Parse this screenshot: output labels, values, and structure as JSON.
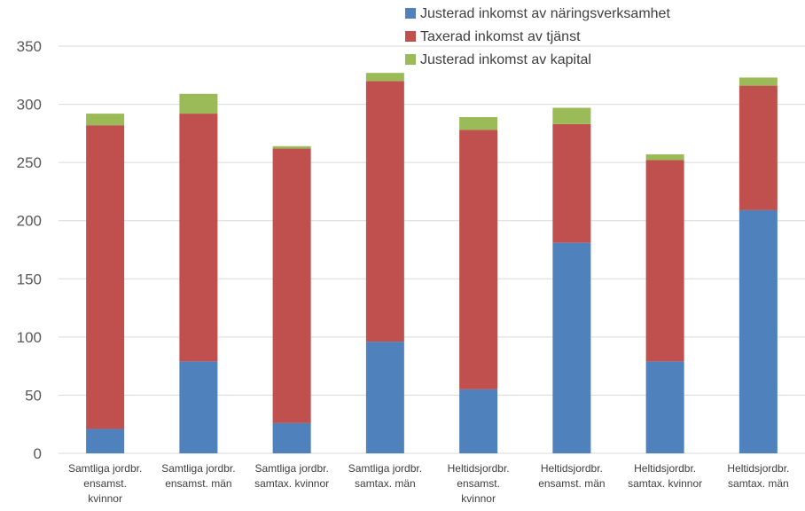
{
  "chart_data": {
    "type": "bar",
    "stacked": true,
    "categories": [
      [
        "Samtliga jordbr.",
        "ensamst.",
        "kvinnor"
      ],
      [
        "Samtliga jordbr.",
        "ensamst. män"
      ],
      [
        "Samtliga jordbr.",
        "samtax. kvinnor"
      ],
      [
        "Samtliga jordbr.",
        "samtax. män"
      ],
      [
        "Heltidsjordbr.",
        "ensamst.",
        "kvinnor"
      ],
      [
        "Heltidsjordbr.",
        "ensamst. män"
      ],
      [
        "Heltidsjordbr.",
        "samtax. kvinnor"
      ],
      [
        "Heltidsjordbr.",
        "samtax. män"
      ]
    ],
    "series": [
      {
        "name": "Justerad inkomst av näringsverksamhet",
        "color": "#4f81bd",
        "values": [
          21,
          79,
          26,
          96,
          55,
          181,
          79,
          209
        ]
      },
      {
        "name": "Taxerad inkomst av tjänst",
        "color": "#c0504d",
        "values": [
          261,
          213,
          236,
          224,
          223,
          102,
          173,
          107
        ]
      },
      {
        "name": "Justerad inkomst av kapital",
        "color": "#9bbb59",
        "values": [
          10,
          17,
          2,
          7,
          11,
          14,
          5,
          7
        ]
      }
    ],
    "yticks": [
      0,
      50,
      100,
      150,
      200,
      250,
      300,
      350
    ],
    "ylim": [
      0,
      350
    ],
    "grid": true,
    "legend_position": "top-right"
  }
}
